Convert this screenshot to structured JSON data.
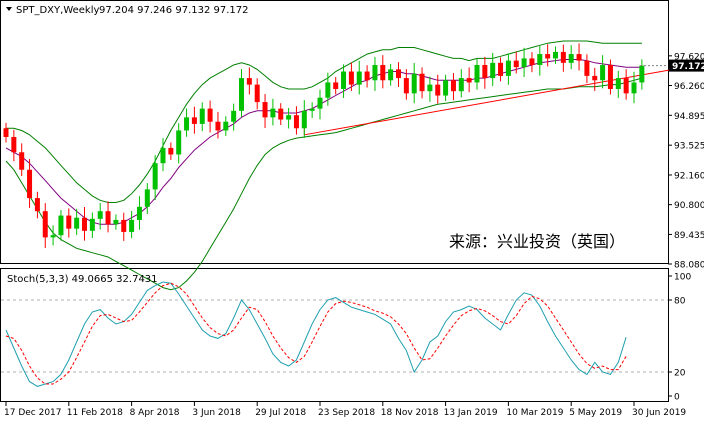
{
  "chart_data": [
    {
      "type": "candlestick",
      "title": "SPT_DXY,Weekly",
      "ohlc_readout": "97.204 97.246 97.132 97.172",
      "watermark": "来源：兴业投资（英国）",
      "ylim": [
        88.08,
        98.62
      ],
      "yticks": [
        {
          "v": 97.62,
          "label": "97.620"
        },
        {
          "v": 96.26,
          "label": "96.260"
        },
        {
          "v": 94.895,
          "label": "94.895"
        },
        {
          "v": 93.525,
          "label": "93.525"
        },
        {
          "v": 92.16,
          "label": "92.160"
        },
        {
          "v": 90.8,
          "label": "90.800"
        },
        {
          "v": 89.435,
          "label": "89.435"
        },
        {
          "v": 88.08,
          "label": "88.080"
        }
      ],
      "current_price": {
        "v": 97.172,
        "label": "97.172"
      },
      "xlabels": [
        {
          "i": 0,
          "label": "17 Dec 2017"
        },
        {
          "i": 8,
          "label": "11 Feb 2018"
        },
        {
          "i": 16,
          "label": "8 Apr 2018"
        },
        {
          "i": 24,
          "label": "3 Jun 2018"
        },
        {
          "i": 32,
          "label": "29 Jul 2018"
        },
        {
          "i": 40,
          "label": "23 Sep 2018"
        },
        {
          "i": 48,
          "label": "18 Nov 2018"
        },
        {
          "i": 56,
          "label": "13 Jan 2019"
        },
        {
          "i": 64,
          "label": "10 Mar 2019"
        },
        {
          "i": 72,
          "label": "5 May 2019"
        },
        {
          "i": 80,
          "label": "30 Jun 2019"
        }
      ],
      "closes": [
        93.9,
        93.2,
        92.4,
        91.1,
        90.5,
        89.3,
        89.4,
        90.3,
        89.7,
        90.2,
        89.6,
        90.15,
        90.5,
        89.9,
        90.1,
        89.55,
        90.1,
        90.7,
        91.5,
        92.7,
        93.4,
        93.1,
        94.2,
        94.8,
        94.5,
        95.2,
        94.6,
        94.2,
        94.6,
        95.1,
        96.6,
        96.3,
        95.5,
        94.8,
        95.2,
        94.7,
        94.9,
        94.3,
        95.1,
        95.2,
        95.7,
        96.4,
        96.1,
        96.9,
        96.3,
        96.9,
        96.5,
        97.2,
        96.5,
        97.0,
        96.6,
        95.9,
        96.8,
        96.0,
        96.3,
        95.8,
        96.5,
        96.0,
        96.6,
        96.4,
        97.2,
        96.6,
        97.3,
        96.7,
        97.4,
        97.1,
        97.5,
        97.2,
        97.7,
        97.5,
        97.8,
        97.3,
        97.7,
        97.4,
        96.7,
        96.5,
        97.2,
        96.1,
        96.6,
        95.9,
        96.4,
        97.17
      ],
      "ma": {
        "color": "#800080",
        "values": [
          93.4,
          93.2,
          93.0,
          92.7,
          92.3,
          91.9,
          91.5,
          91.1,
          90.8,
          90.5,
          90.2,
          90.0,
          89.9,
          89.9,
          89.9,
          90.0,
          90.2,
          90.4,
          90.7,
          91.1,
          91.6,
          92.0,
          92.5,
          92.9,
          93.3,
          93.6,
          93.9,
          94.1,
          94.3,
          94.5,
          94.8,
          95.0,
          95.1,
          95.1,
          95.1,
          95.0,
          95.0,
          95.0,
          95.1,
          95.2,
          95.4,
          95.6,
          95.8,
          96.0,
          96.2,
          96.4,
          96.5,
          96.7,
          96.8,
          96.9,
          96.9,
          96.8,
          96.8,
          96.7,
          96.6,
          96.5,
          96.5,
          96.5,
          96.5,
          96.5,
          96.6,
          96.6,
          96.7,
          96.8,
          96.9,
          97.0,
          97.1,
          97.2,
          97.3,
          97.35,
          97.4,
          97.45,
          97.45,
          97.45,
          97.4,
          97.3,
          97.25,
          97.2,
          97.15,
          97.1,
          97.1,
          97.1
        ]
      },
      "bb_upper": {
        "color": "#008000",
        "values": [
          94.3,
          94.3,
          94.2,
          94.0,
          93.7,
          93.4,
          93.0,
          92.6,
          92.2,
          91.8,
          91.5,
          91.2,
          91.0,
          90.9,
          90.9,
          91.0,
          91.3,
          91.7,
          92.2,
          92.8,
          93.5,
          94.2,
          94.8,
          95.4,
          95.9,
          96.3,
          96.6,
          96.8,
          97.0,
          97.2,
          97.3,
          97.2,
          97.0,
          96.7,
          96.4,
          96.2,
          96.1,
          96.1,
          96.1,
          96.2,
          96.4,
          96.6,
          96.9,
          97.1,
          97.3,
          97.5,
          97.7,
          97.8,
          97.9,
          97.9,
          98.0,
          98.0,
          98.0,
          97.9,
          97.8,
          97.7,
          97.6,
          97.5,
          97.5,
          97.4,
          97.5,
          97.5,
          97.5,
          97.6,
          97.7,
          97.8,
          97.9,
          98.0,
          98.1,
          98.2,
          98.25,
          98.3,
          98.3,
          98.3,
          98.3,
          98.25,
          98.2,
          98.2,
          98.2,
          98.2,
          98.2,
          98.2
        ]
      },
      "bb_lower": {
        "color": "#008000",
        "values": [
          92.8,
          92.4,
          91.8,
          91.2,
          90.6,
          90.0,
          89.5,
          89.2,
          89.0,
          88.8,
          88.7,
          88.6,
          88.5,
          88.4,
          88.2,
          88.0,
          87.8,
          87.6,
          87.4,
          87.2,
          87.0,
          86.9,
          87.0,
          87.3,
          87.7,
          88.2,
          88.8,
          89.4,
          90.0,
          90.6,
          91.3,
          92.0,
          92.6,
          93.1,
          93.4,
          93.6,
          93.75,
          93.85,
          93.9,
          93.95,
          94.0,
          94.05,
          94.1,
          94.2,
          94.3,
          94.4,
          94.5,
          94.6,
          94.7,
          94.8,
          94.9,
          95.0,
          95.1,
          95.2,
          95.3,
          95.4,
          95.45,
          95.5,
          95.55,
          95.6,
          95.65,
          95.7,
          95.75,
          95.8,
          95.85,
          95.9,
          95.95,
          96.0,
          96.05,
          96.1,
          96.1,
          96.1,
          96.15,
          96.2,
          96.2,
          96.2,
          96.25,
          96.3,
          96.3,
          96.4,
          96.5,
          96.6
        ]
      },
      "trendline": {
        "color": "#ff0000",
        "from": {
          "i": 38,
          "v": 94.0
        },
        "to": {
          "i": 85,
          "v": 97.0
        }
      },
      "colors": {
        "up": "#00c000",
        "down": "#ff0000"
      }
    },
    {
      "type": "line",
      "title": "Stoch(5,3,3) 49.0665 32.7431",
      "ylim": [
        0,
        100
      ],
      "yticks": [
        {
          "v": 100,
          "label": "100"
        },
        {
          "v": 80,
          "label": "80"
        },
        {
          "v": 20,
          "label": "20"
        },
        {
          "v": 0,
          "label": "0"
        }
      ],
      "levels": [
        80,
        20
      ],
      "series": [
        {
          "color": "#20a0b0",
          "dash": false,
          "values": [
            55,
            40,
            25,
            12,
            8,
            10,
            12,
            18,
            30,
            45,
            60,
            70,
            72,
            65,
            60,
            62,
            68,
            78,
            88,
            92,
            95,
            94,
            85,
            75,
            65,
            55,
            50,
            48,
            52,
            65,
            80,
            72,
            60,
            48,
            35,
            28,
            25,
            30,
            45,
            60,
            72,
            80,
            82,
            78,
            74,
            72,
            70,
            68,
            64,
            60,
            48,
            38,
            20,
            30,
            45,
            50,
            62,
            70,
            72,
            75,
            72,
            65,
            60,
            55,
            68,
            80,
            86,
            84,
            75,
            62,
            50,
            40,
            30,
            22,
            18,
            28,
            20,
            18,
            28,
            49
          ]
        },
        {
          "color": "#ff0000",
          "dash": true,
          "values": [
            50,
            48,
            38,
            25,
            15,
            10,
            10,
            14,
            20,
            32,
            45,
            58,
            67,
            68,
            65,
            62,
            63,
            70,
            78,
            86,
            92,
            94,
            91,
            85,
            75,
            65,
            57,
            52,
            50,
            55,
            65,
            74,
            72,
            62,
            50,
            40,
            32,
            28,
            33,
            45,
            58,
            70,
            77,
            79,
            78,
            76,
            74,
            71,
            69,
            66,
            60,
            52,
            40,
            30,
            31,
            40,
            50,
            59,
            67,
            71,
            73,
            71,
            67,
            62,
            60,
            67,
            77,
            83,
            81,
            75,
            65,
            55,
            45,
            35,
            27,
            23,
            25,
            22,
            22,
            33
          ]
        }
      ]
    }
  ]
}
